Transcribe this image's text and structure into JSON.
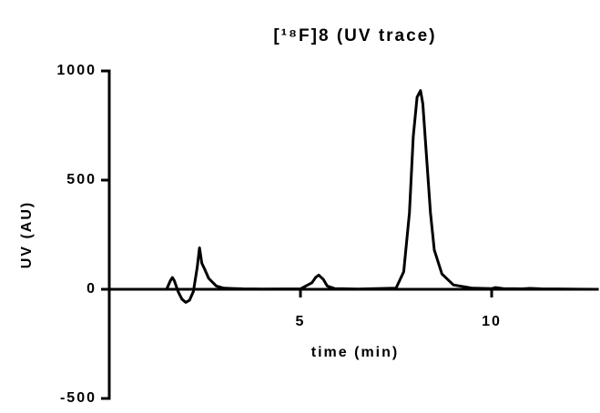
{
  "chart_data": {
    "type": "line",
    "title": "[¹⁸F]8 (UV trace)",
    "x_label": "time (min)",
    "y_label": "UV (AU)",
    "x": [
      1.5,
      1.6,
      1.65,
      1.7,
      1.8,
      1.9,
      2.0,
      2.1,
      2.2,
      2.3,
      2.36,
      2.42,
      2.5,
      2.6,
      2.8,
      3.0,
      3.5,
      4.0,
      5.0,
      5.3,
      5.4,
      5.48,
      5.6,
      5.7,
      5.9,
      6.5,
      7.5,
      7.7,
      7.85,
      7.95,
      8.05,
      8.14,
      8.2,
      8.3,
      8.4,
      8.5,
      8.7,
      9.0,
      9.5,
      10.0,
      10.1,
      10.3,
      10.8,
      11.0,
      11.3,
      12.0,
      12.7
    ],
    "series": [
      {
        "color": "#000000",
        "values": [
          0,
          40,
          54,
          40,
          -10,
          -45,
          -60,
          -50,
          -10,
          100,
          190,
          120,
          90,
          50,
          15,
          5,
          2,
          1,
          2,
          30,
          55,
          65,
          45,
          15,
          3,
          1,
          5,
          80,
          350,
          700,
          880,
          910,
          850,
          600,
          350,
          180,
          70,
          20,
          5,
          3,
          8,
          3,
          2,
          4,
          2,
          1,
          0
        ]
      }
    ],
    "xlim": [
      0,
      12.8
    ],
    "ylim": [
      -500,
      1000
    ],
    "xticks": [
      5,
      10
    ],
    "yticks": [
      -500,
      0,
      500,
      1000
    ],
    "grid": false
  }
}
